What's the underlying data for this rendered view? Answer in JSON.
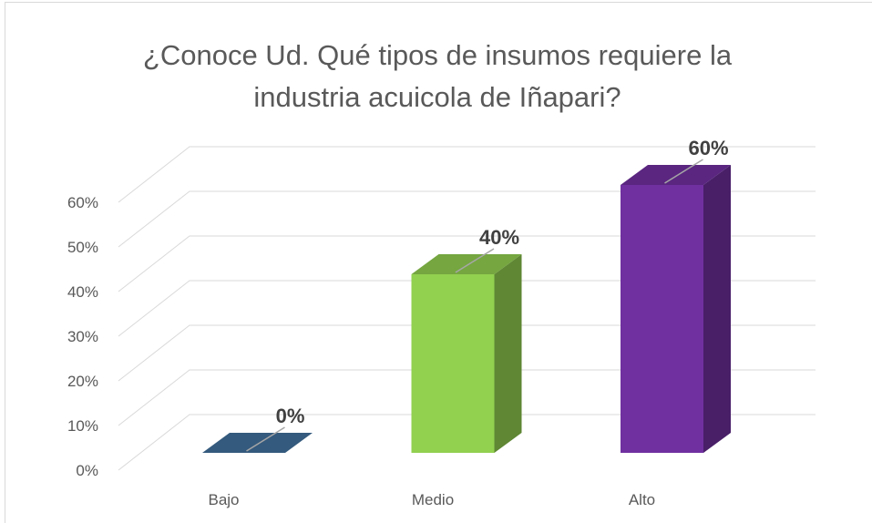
{
  "chart_data": {
    "type": "bar3d",
    "title": "¿Conoce Ud. Qué tipos de insumos requiere la industria acuicola de Iñapari?",
    "categories": [
      "Bajo",
      "Medio",
      "Alto"
    ],
    "values": [
      0,
      40,
      60
    ],
    "value_labels": [
      "0%",
      "40%",
      "60%"
    ],
    "colors": [
      "#41719c",
      "#92d050",
      "#7030a0"
    ],
    "ylim": [
      0,
      60
    ],
    "yticks": [
      {
        "value": 0,
        "label": "0%"
      },
      {
        "value": 10,
        "label": "10%"
      },
      {
        "value": 20,
        "label": "20%"
      },
      {
        "value": 30,
        "label": "30%"
      },
      {
        "value": 40,
        "label": "40%"
      },
      {
        "value": 50,
        "label": "50%"
      },
      {
        "value": 60,
        "label": "60%"
      }
    ],
    "grid": true
  }
}
